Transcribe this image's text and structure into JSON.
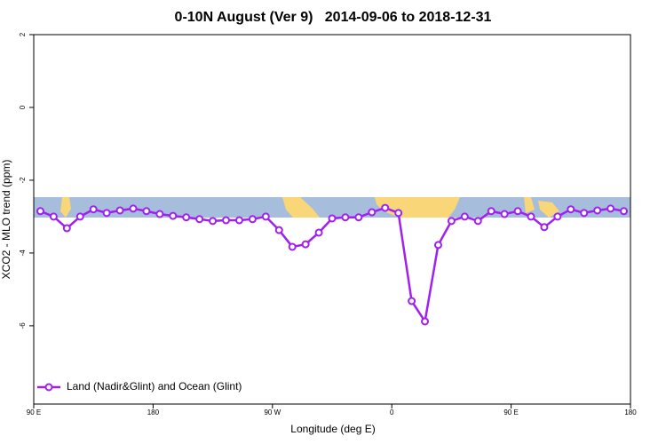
{
  "chart_data": {
    "type": "line",
    "title": "0-10N August (Ver 9)   2014-09-06 to 2018-12-31",
    "x_label": "Longitude (deg E)",
    "y_label": "XCO2 - MLO trend (ppm)",
    "x": [
      95,
      105,
      115,
      125,
      135,
      145,
      155,
      165,
      175,
      185,
      195,
      205,
      215,
      225,
      235,
      245,
      255,
      265,
      275,
      285,
      295,
      305,
      315,
      325,
      335,
      345,
      355,
      365,
      375,
      385,
      395,
      405,
      415,
      425,
      435,
      445,
      455,
      465,
      475,
      485,
      495,
      505,
      515,
      525,
      535
    ],
    "series": [
      {
        "name": "Land (Nadir&Glint) and Ocean (Glint)",
        "color": "#a020f0",
        "values": [
          -2.85,
          -3.0,
          -3.32,
          -3.0,
          -2.8,
          -2.9,
          -2.83,
          -2.78,
          -2.85,
          -2.93,
          -2.98,
          -3.02,
          -3.07,
          -3.12,
          -3.1,
          -3.1,
          -3.07,
          -3.0,
          -3.37,
          -3.83,
          -3.76,
          -3.44,
          -3.05,
          -3.02,
          -3.02,
          -2.88,
          -2.76,
          -2.9,
          -5.32,
          -5.88,
          -3.78,
          -3.12,
          -3.0,
          -3.12,
          -2.85,
          -2.93,
          -2.85,
          -3.0,
          -3.29,
          -3.0,
          -2.8,
          -2.9,
          -2.83,
          -2.78,
          -2.85
        ]
      }
    ],
    "xlim": [
      90,
      540
    ],
    "xticks": [
      {
        "value": 90,
        "label": "90 E"
      },
      180,
      {
        "value": 270,
        "label": "90 W"
      },
      {
        "value": 360,
        "label": "0"
      },
      {
        "value": 450,
        "label": "90 E"
      },
      {
        "value": 540,
        "label": "180"
      }
    ],
    "ylim": [
      -8.15,
      2
    ],
    "yticks": [
      2,
      0,
      -2,
      -4,
      -6
    ],
    "legend": "bottom-left"
  }
}
